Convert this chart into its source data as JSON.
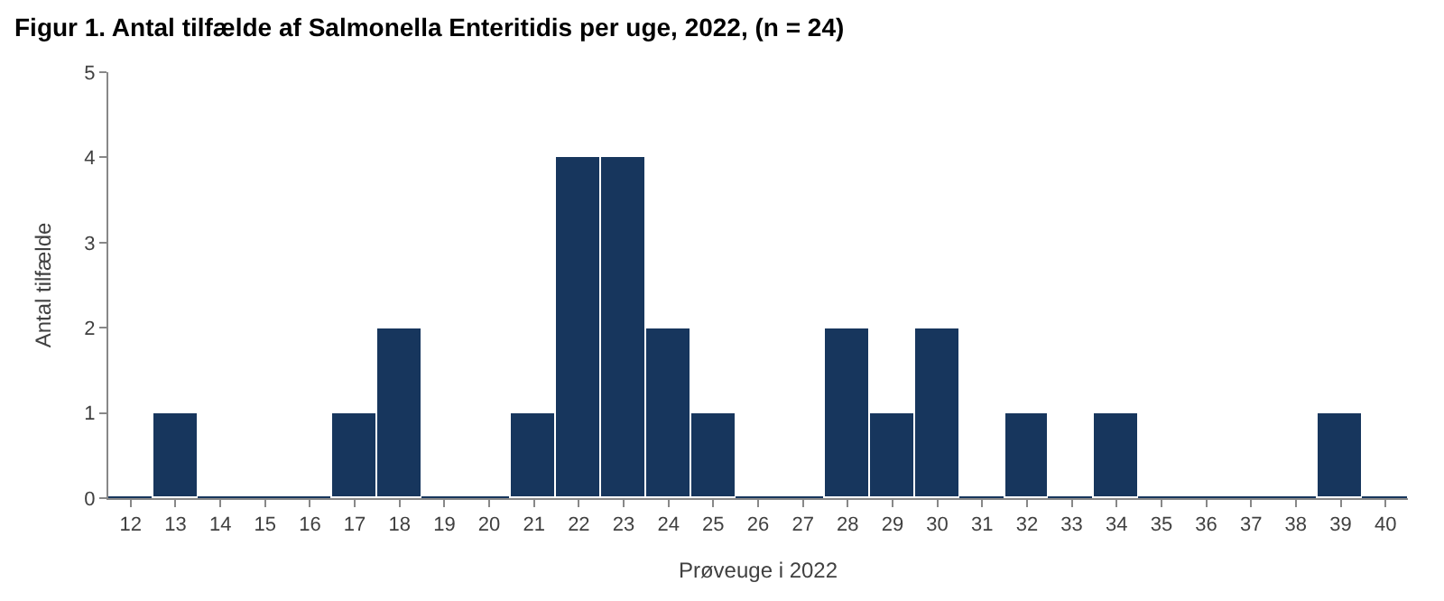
{
  "chart_data": {
    "type": "bar",
    "title": "Figur 1. Antal tilfælde af Salmonella Enteritidis per uge, 2022, (n = 24)",
    "xlabel": "Prøveuge i 2022",
    "ylabel": "Antal tilfælde",
    "categories": [
      "12",
      "13",
      "14",
      "15",
      "16",
      "17",
      "18",
      "19",
      "20",
      "21",
      "22",
      "23",
      "24",
      "25",
      "26",
      "27",
      "28",
      "29",
      "30",
      "31",
      "32",
      "33",
      "34",
      "35",
      "36",
      "37",
      "38",
      "39",
      "40"
    ],
    "values": [
      0,
      1,
      0,
      0,
      0,
      1,
      2,
      0,
      0,
      1,
      4,
      4,
      2,
      1,
      0,
      0,
      2,
      1,
      2,
      0,
      1,
      0,
      1,
      0,
      0,
      0,
      0,
      1,
      0
    ],
    "color": "#17365d",
    "ylim": [
      0,
      5
    ],
    "yticks": [
      0,
      1,
      2,
      3,
      4,
      5
    ]
  }
}
